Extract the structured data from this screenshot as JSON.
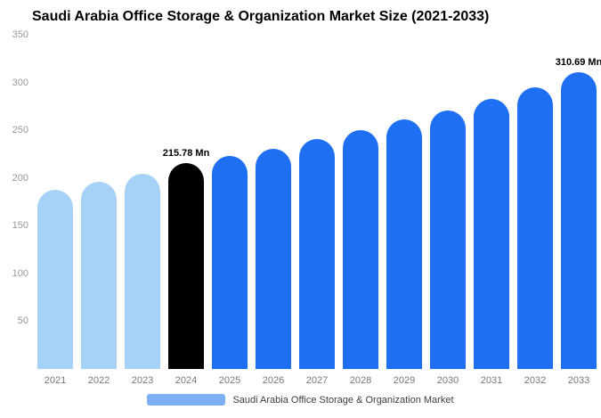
{
  "chart_data": {
    "type": "bar",
    "title": "Saudi Arabia Office Storage & Organization Market Size (2021-2033)",
    "categories": [
      "2021",
      "2022",
      "2023",
      "2024",
      "2025",
      "2026",
      "2027",
      "2028",
      "2029",
      "2030",
      "2031",
      "2032",
      "2033"
    ],
    "values": [
      188,
      196,
      204,
      215.78,
      223,
      231,
      241,
      250,
      261,
      271,
      283,
      295,
      310.69
    ],
    "unit": "Mn",
    "ylim": [
      0,
      350
    ],
    "yticks": [
      350,
      300,
      250,
      200,
      150,
      100,
      50
    ],
    "grid": false,
    "colors": [
      "#A6D2F8",
      "#A6D2F8",
      "#A6D2F8",
      "#000000",
      "#1E6FF2",
      "#1E6FF2",
      "#1E6FF2",
      "#1E6FF2",
      "#1E6FF2",
      "#1E6FF2",
      "#1E6FF2",
      "#1E6FF2",
      "#1E6FF2"
    ],
    "annotations": [
      {
        "category": "2024",
        "text": "215.78 Mn"
      },
      {
        "category": "2033",
        "text": "310.69 Mn"
      }
    ],
    "legend": {
      "label": "Saudi Arabia Office Storage & Organization Market",
      "position": "bottom",
      "swatch_color": "#7CAFF6"
    }
  }
}
